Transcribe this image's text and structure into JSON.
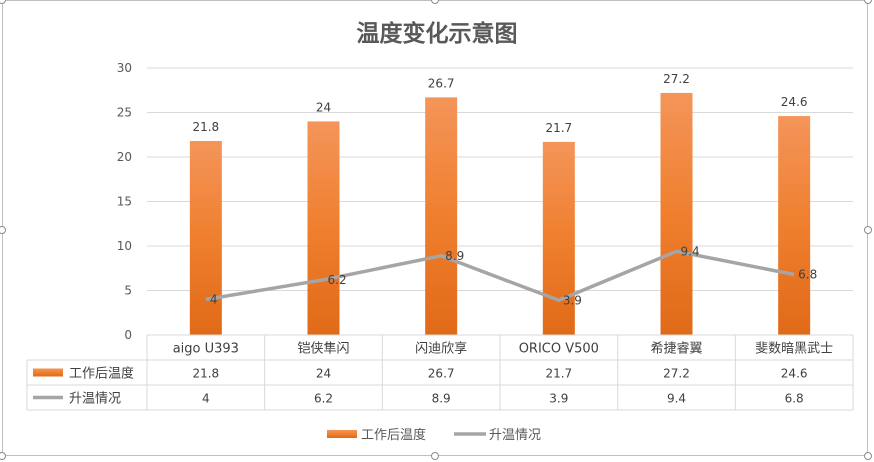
{
  "chart_data": {
    "type": "bar",
    "title": "温度变化示意图",
    "categories": [
      "aigo U393",
      "铠侠隼闪",
      "闪迪欣享",
      "ORICO V500",
      "希捷睿翼",
      "斐数暗黑武士"
    ],
    "series": [
      {
        "name": "工作后温度",
        "type": "bar",
        "color": "#ED7D31",
        "values": [
          21.8,
          24,
          26.7,
          21.7,
          27.2,
          24.6
        ]
      },
      {
        "name": "升温情况",
        "type": "line",
        "color": "#A5A5A5",
        "values": [
          4,
          6.2,
          8.9,
          3.9,
          9.4,
          6.8
        ]
      }
    ],
    "ylim": [
      0,
      30
    ],
    "yticks": [
      "0",
      "5",
      "10",
      "15",
      "20",
      "25",
      "30"
    ],
    "grid": true,
    "data_table": true,
    "legend": "bottom"
  }
}
